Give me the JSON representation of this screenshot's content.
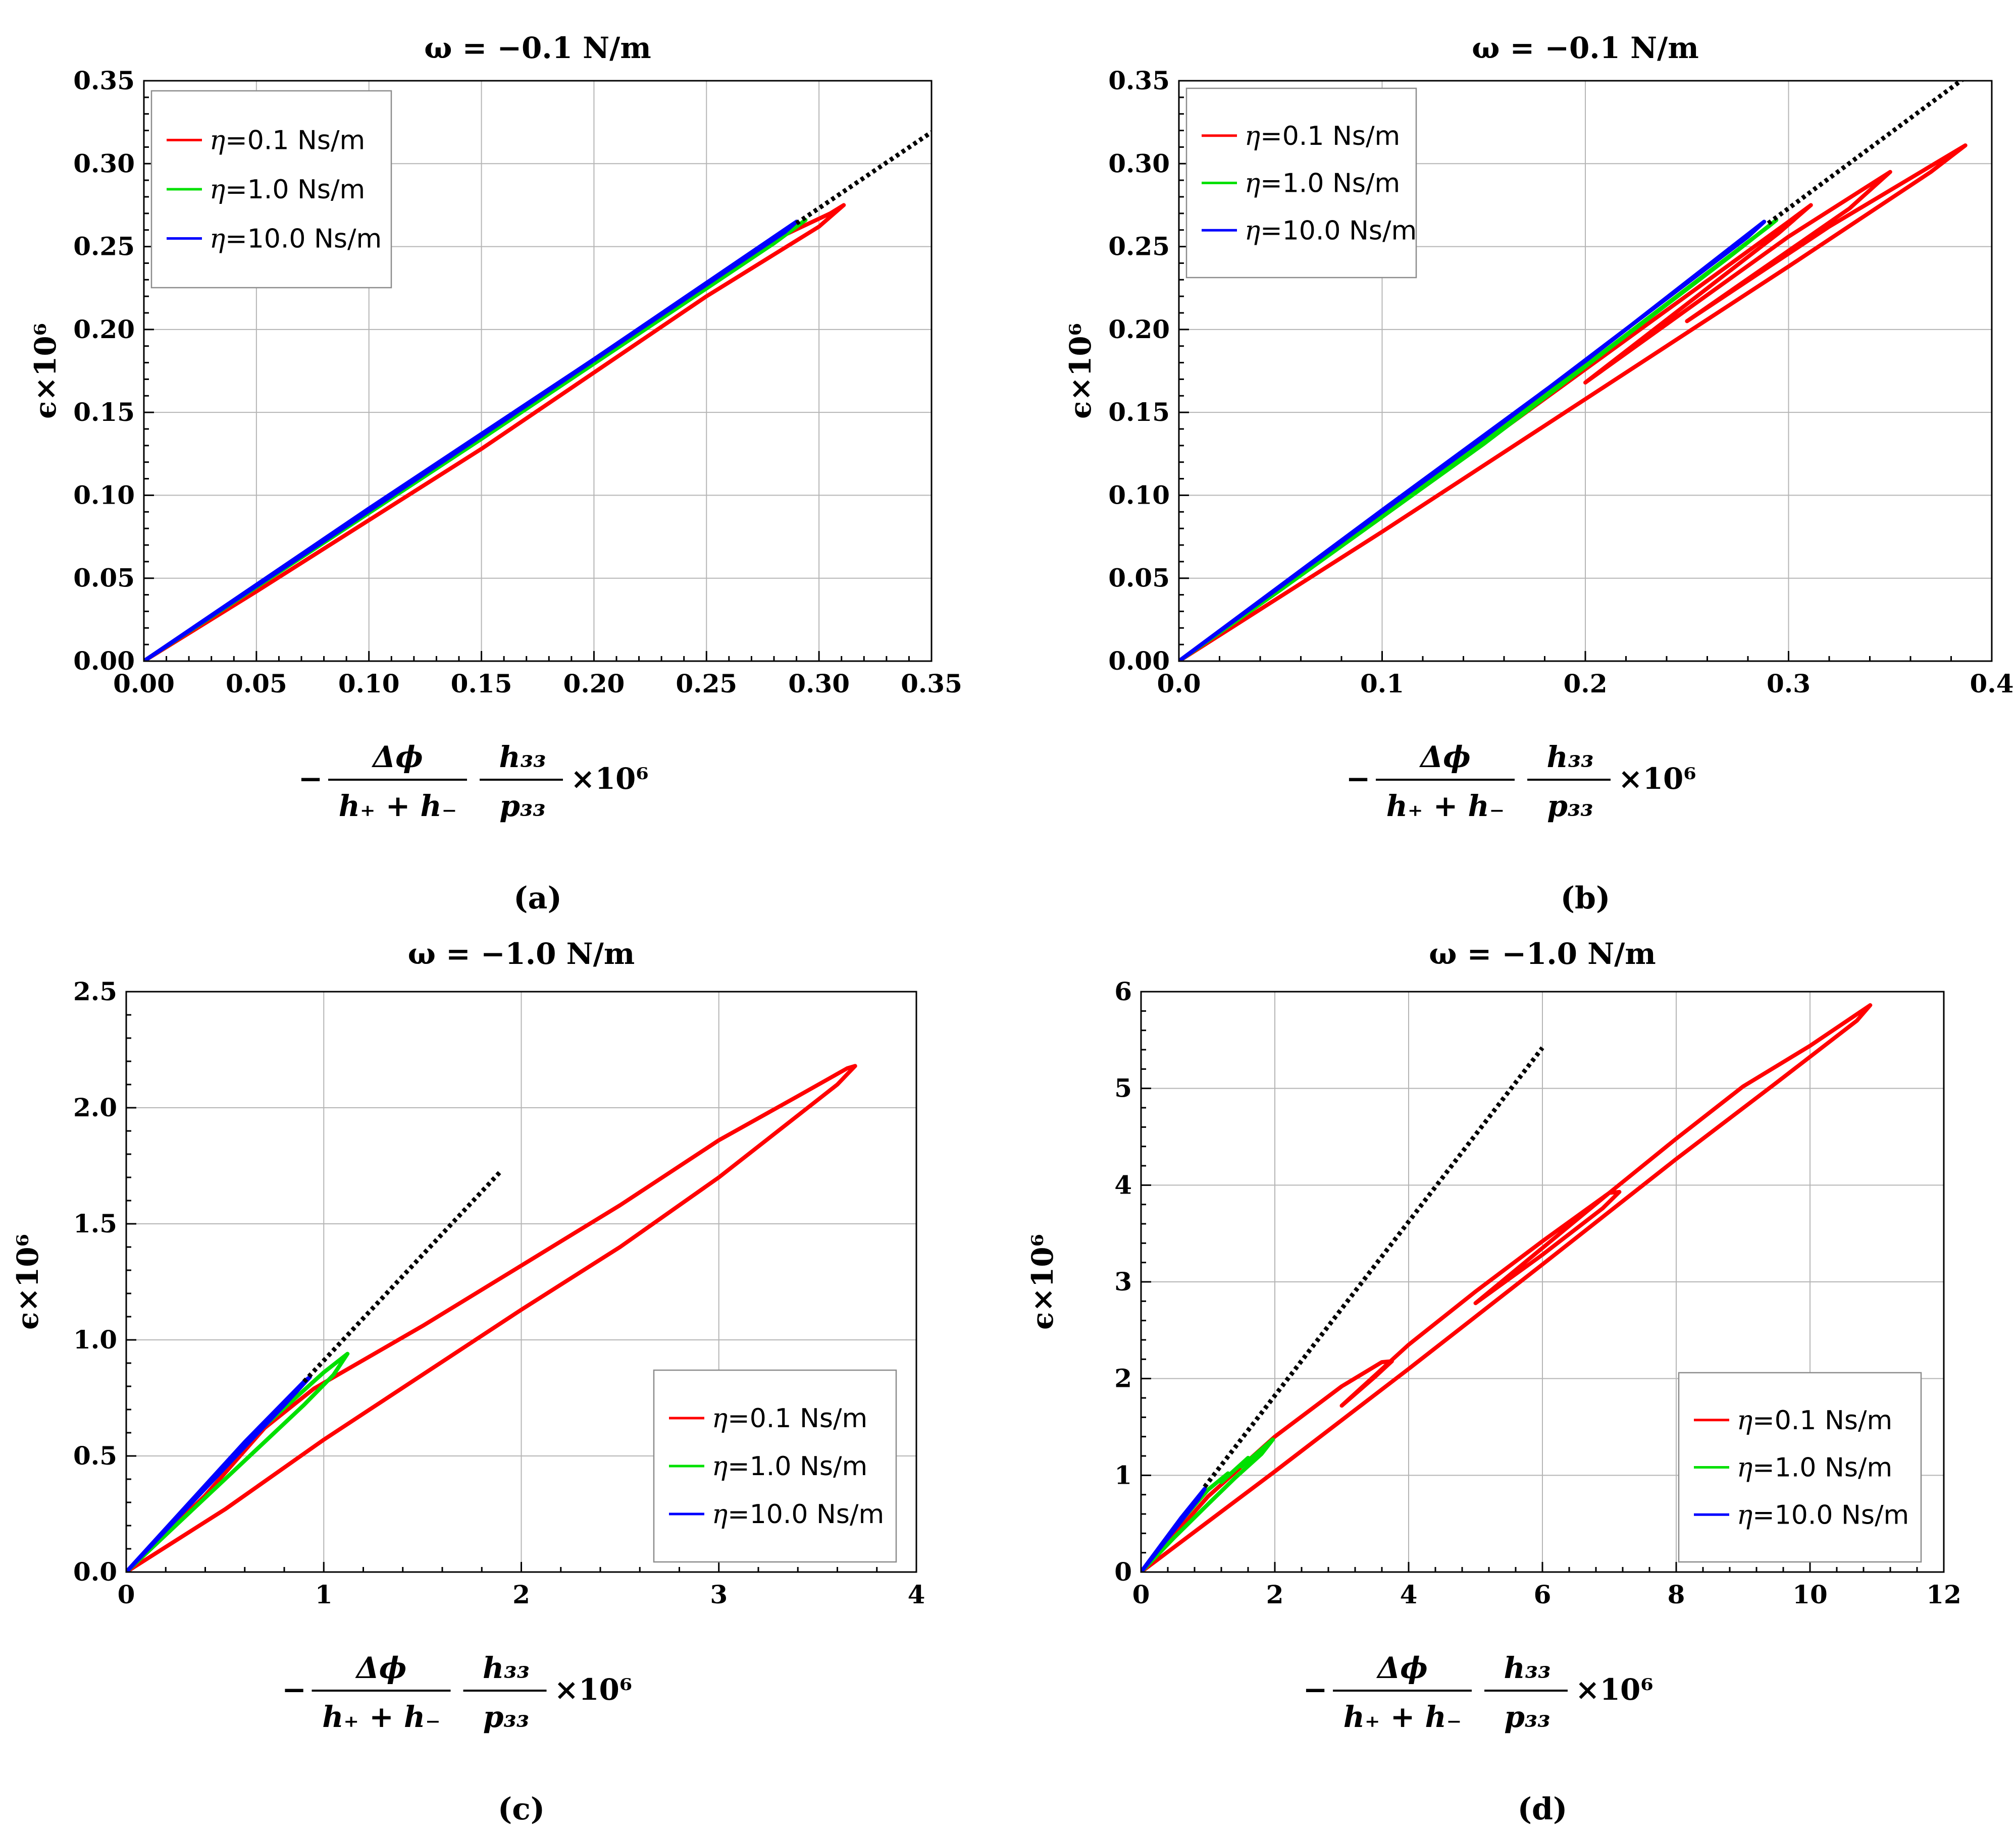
{
  "chart_data": [
    {
      "panel": "a",
      "type": "line",
      "title": "ω = −0.1 N/m",
      "caption": "(a)",
      "ylabel": "ϵ×10⁶",
      "xlabel": "−Δϕ/(h₊+h₋) · h₃₃/p₃₃ ×10⁶",
      "xlim": [
        0,
        0.35
      ],
      "ylim": [
        0,
        0.35
      ],
      "xticks": [
        "0.00",
        "0.05",
        "0.10",
        "0.15",
        "0.20",
        "0.25",
        "0.30",
        "0.35"
      ],
      "xtick_values": [
        0,
        0.05,
        0.1,
        0.15,
        0.2,
        0.25,
        0.3,
        0.35
      ],
      "yticks": [
        "0.00",
        "0.05",
        "0.10",
        "0.15",
        "0.20",
        "0.25",
        "0.30",
        "0.35"
      ],
      "ytick_values": [
        0,
        0.05,
        0.1,
        0.15,
        0.2,
        0.25,
        0.3,
        0.35
      ],
      "legend_position": "top-left",
      "legend": [
        {
          "eta": "η",
          "label": "=0.1 Ns/m",
          "color": "#ff0000"
        },
        {
          "eta": "η",
          "label": "=1.0 Ns/m",
          "color": "#00e000"
        },
        {
          "eta": "η",
          "label": "=10.0 Ns/m",
          "color": "#0000ff"
        }
      ],
      "reference_line": {
        "style": "dotted",
        "color": "#000000",
        "points": [
          [
            0.29,
            0.264
          ],
          [
            0.35,
            0.319
          ]
        ]
      },
      "series": [
        {
          "name": "η=0.1 Ns/m",
          "color": "#ff0000",
          "points": [
            [
              0,
              0
            ],
            [
              0.1,
              0.091
            ],
            [
              0.2,
              0.18
            ],
            [
              0.28,
              0.254
            ],
            [
              0.305,
              0.27
            ],
            [
              0.311,
              0.275
            ],
            [
              0.3,
              0.262
            ],
            [
              0.25,
              0.22
            ],
            [
              0.15,
              0.128
            ],
            [
              0.05,
              0.042
            ],
            [
              0,
              0
            ]
          ]
        },
        {
          "name": "η=1.0 Ns/m",
          "color": "#00e000",
          "points": [
            [
              0,
              0
            ],
            [
              0.1,
              0.091
            ],
            [
              0.2,
              0.181
            ],
            [
              0.29,
              0.262
            ],
            [
              0.294,
              0.266
            ],
            [
              0.28,
              0.252
            ],
            [
              0.15,
              0.134
            ],
            [
              0,
              0
            ]
          ]
        },
        {
          "name": "η=10.0 Ns/m",
          "color": "#0000ff",
          "points": [
            [
              0,
              0
            ],
            [
              0.1,
              0.092
            ],
            [
              0.2,
              0.182
            ],
            [
              0.29,
              0.265
            ],
            [
              0.285,
              0.259
            ],
            [
              0.15,
              0.136
            ],
            [
              0,
              0
            ]
          ]
        }
      ]
    },
    {
      "panel": "b",
      "type": "line",
      "title": "ω = −0.1 N/m",
      "caption": "(b)",
      "ylabel": "ϵ×10⁶",
      "xlabel": "−Δϕ/(h₊+h₋) · h₃₃/p₃₃ ×10⁶",
      "xlim": [
        0,
        0.4
      ],
      "ylim": [
        0,
        0.35
      ],
      "xticks": [
        "0.0",
        "0.1",
        "0.2",
        "0.3",
        "0.4"
      ],
      "xtick_values": [
        0,
        0.1,
        0.2,
        0.3,
        0.4
      ],
      "yticks": [
        "0.00",
        "0.05",
        "0.10",
        "0.15",
        "0.20",
        "0.25",
        "0.30",
        "0.35"
      ],
      "ytick_values": [
        0,
        0.05,
        0.1,
        0.15,
        0.2,
        0.25,
        0.3,
        0.35
      ],
      "legend_position": "top-left",
      "legend": [
        {
          "eta": "η",
          "label": "=0.1 Ns/m",
          "color": "#ff0000"
        },
        {
          "eta": "η",
          "label": "=1.0 Ns/m",
          "color": "#00e000"
        },
        {
          "eta": "η",
          "label": "=10.0 Ns/m",
          "color": "#0000ff"
        }
      ],
      "reference_line": {
        "style": "dotted",
        "color": "#000000",
        "points": [
          [
            0.29,
            0.264
          ],
          [
            0.387,
            0.352
          ]
        ]
      },
      "series": [
        {
          "name": "η=0.1 Ns/m",
          "color": "#ff0000",
          "points": [
            [
              0,
              0
            ],
            [
              0.1,
              0.087
            ],
            [
              0.2,
              0.176
            ],
            [
              0.3,
              0.265
            ],
            [
              0.311,
              0.275
            ],
            [
              0.295,
              0.258
            ],
            [
              0.2,
              0.168
            ],
            [
              0.3,
              0.256
            ],
            [
              0.35,
              0.295
            ],
            [
              0.33,
              0.273
            ],
            [
              0.25,
              0.205
            ],
            [
              0.32,
              0.262
            ],
            [
              0.387,
              0.311
            ],
            [
              0.37,
              0.295
            ],
            [
              0.3,
              0.238
            ],
            [
              0.2,
              0.158
            ],
            [
              0.1,
              0.078
            ],
            [
              0,
              0
            ]
          ]
        },
        {
          "name": "η=1.0 Ns/m",
          "color": "#00e000",
          "points": [
            [
              0,
              0
            ],
            [
              0.1,
              0.089
            ],
            [
              0.2,
              0.178
            ],
            [
              0.29,
              0.262
            ],
            [
              0.294,
              0.266
            ],
            [
              0.27,
              0.243
            ],
            [
              0.15,
              0.131
            ],
            [
              0.05,
              0.043
            ],
            [
              0,
              0
            ]
          ]
        },
        {
          "name": "η=10.0 Ns/m",
          "color": "#0000ff",
          "points": [
            [
              0,
              0
            ],
            [
              0.1,
              0.091
            ],
            [
              0.2,
              0.181
            ],
            [
              0.288,
              0.265
            ],
            [
              0.28,
              0.256
            ],
            [
              0.15,
              0.135
            ],
            [
              0,
              0
            ]
          ]
        }
      ]
    },
    {
      "panel": "c",
      "type": "line",
      "title": "ω = −1.0 N/m",
      "caption": "(c)",
      "ylabel": "ϵ×10⁶",
      "xlabel": "−Δϕ/(h₊+h₋) · h₃₃/p₃₃ ×10⁶",
      "xlim": [
        0,
        4
      ],
      "ylim": [
        0,
        2.5
      ],
      "xticks": [
        "0",
        "1",
        "2",
        "3",
        "4"
      ],
      "xtick_values": [
        0,
        1,
        2,
        3,
        4
      ],
      "yticks": [
        "0.0",
        "0.5",
        "1.0",
        "1.5",
        "2.0",
        "2.5"
      ],
      "ytick_values": [
        0,
        0.5,
        1.0,
        1.5,
        2.0,
        2.5
      ],
      "legend_position": "bottom-right",
      "legend": [
        {
          "eta": "η",
          "label": "=0.1 Ns/m",
          "color": "#ff0000"
        },
        {
          "eta": "η",
          "label": "=1.0 Ns/m",
          "color": "#00e000"
        },
        {
          "eta": "η",
          "label": "=10.0 Ns/m",
          "color": "#0000ff"
        }
      ],
      "reference_line": {
        "style": "dotted",
        "color": "#000000",
        "points": [
          [
            0.9,
            0.82
          ],
          [
            1.9,
            1.73
          ]
        ]
      },
      "series": [
        {
          "name": "η=0.1 Ns/m",
          "color": "#ff0000",
          "points": [
            [
              0,
              0
            ],
            [
              0.4,
              0.33
            ],
            [
              0.7,
              0.62
            ],
            [
              0.95,
              0.79
            ],
            [
              1.5,
              1.06
            ],
            [
              2.0,
              1.32
            ],
            [
              2.5,
              1.58
            ],
            [
              3.0,
              1.86
            ],
            [
              3.4,
              2.05
            ],
            [
              3.65,
              2.17
            ],
            [
              3.69,
              2.18
            ],
            [
              3.6,
              2.1
            ],
            [
              3.0,
              1.7
            ],
            [
              2.5,
              1.4
            ],
            [
              2.0,
              1.13
            ],
            [
              1.5,
              0.85
            ],
            [
              1.0,
              0.57
            ],
            [
              0.5,
              0.27
            ],
            [
              0,
              0
            ]
          ]
        },
        {
          "name": "η=1.0 Ns/m",
          "color": "#00e000",
          "points": [
            [
              0,
              0
            ],
            [
              0.4,
              0.36
            ],
            [
              0.7,
              0.63
            ],
            [
              1.0,
              0.86
            ],
            [
              1.12,
              0.94
            ],
            [
              1.05,
              0.85
            ],
            [
              0.9,
              0.72
            ],
            [
              0.6,
              0.48
            ],
            [
              0.3,
              0.24
            ],
            [
              0,
              0
            ]
          ]
        },
        {
          "name": "η=10.0 Ns/m",
          "color": "#0000ff",
          "points": [
            [
              0,
              0
            ],
            [
              0.3,
              0.28
            ],
            [
              0.6,
              0.56
            ],
            [
              0.9,
              0.82
            ],
            [
              0.93,
              0.84
            ],
            [
              0.8,
              0.72
            ],
            [
              0.5,
              0.45
            ],
            [
              0.2,
              0.18
            ],
            [
              0,
              0
            ]
          ]
        }
      ]
    },
    {
      "panel": "d",
      "type": "line",
      "title": "ω = −1.0 N/m",
      "caption": "(d)",
      "ylabel": "ϵ×10⁶",
      "xlabel": "−Δϕ/(h₊+h₋) · h₃₃/p₃₃ ×10⁶",
      "xlim": [
        0,
        12
      ],
      "ylim": [
        0,
        6
      ],
      "xticks": [
        "0",
        "2",
        "4",
        "6",
        "8",
        "10",
        "12"
      ],
      "xtick_values": [
        0,
        2,
        4,
        6,
        8,
        10,
        12
      ],
      "yticks": [
        "0",
        "1",
        "2",
        "3",
        "4",
        "5",
        "6"
      ],
      "ytick_values": [
        0,
        1,
        2,
        3,
        4,
        5,
        6
      ],
      "legend_position": "bottom-right",
      "legend": [
        {
          "eta": "η",
          "label": "=0.1 Ns/m",
          "color": "#ff0000"
        },
        {
          "eta": "η",
          "label": "=1.0 Ns/m",
          "color": "#00e000"
        },
        {
          "eta": "η",
          "label": "=10.0 Ns/m",
          "color": "#0000ff"
        }
      ],
      "reference_line": {
        "style": "dotted",
        "color": "#000000",
        "points": [
          [
            0.95,
            0.88
          ],
          [
            6.0,
            5.42
          ]
        ]
      },
      "series": [
        {
          "name": "η=0.1 Ns/m",
          "color": "#ff0000",
          "points": [
            [
              0,
              0
            ],
            [
              1.0,
              0.78
            ],
            [
              2.0,
              1.4
            ],
            [
              3.0,
              1.92
            ],
            [
              3.6,
              2.17
            ],
            [
              3.75,
              2.18
            ],
            [
              3.5,
              2.02
            ],
            [
              3.0,
              1.72
            ],
            [
              4.0,
              2.35
            ],
            [
              5.0,
              2.9
            ],
            [
              6.0,
              3.42
            ],
            [
              7.0,
              3.92
            ],
            [
              7.15,
              3.93
            ],
            [
              6.9,
              3.76
            ],
            [
              6.0,
              3.28
            ],
            [
              5.0,
              2.78
            ],
            [
              6.0,
              3.35
            ],
            [
              7.0,
              3.92
            ],
            [
              8.0,
              4.48
            ],
            [
              9.0,
              5.02
            ],
            [
              10.0,
              5.44
            ],
            [
              10.9,
              5.86
            ],
            [
              10.7,
              5.7
            ],
            [
              9.5,
              5.06
            ],
            [
              8.0,
              4.27
            ],
            [
              6.0,
              3.18
            ],
            [
              4.0,
              2.1
            ],
            [
              2.0,
              1.04
            ],
            [
              0,
              0
            ]
          ]
        },
        {
          "name": "η=1.0 Ns/m",
          "color": "#00e000",
          "points": [
            [
              0,
              0
            ],
            [
              0.5,
              0.45
            ],
            [
              1.0,
              0.85
            ],
            [
              1.3,
              1.02
            ],
            [
              1.2,
              0.93
            ],
            [
              1.6,
              1.18
            ],
            [
              1.5,
              1.09
            ],
            [
              1.97,
              1.37
            ],
            [
              1.8,
              1.22
            ],
            [
              1.4,
              0.97
            ],
            [
              1.0,
              0.7
            ],
            [
              0.5,
              0.36
            ],
            [
              0,
              0
            ]
          ]
        },
        {
          "name": "η=10.0 Ns/m",
          "color": "#0000ff",
          "points": [
            [
              0,
              0
            ],
            [
              0.3,
              0.28
            ],
            [
              0.6,
              0.56
            ],
            [
              0.95,
              0.86
            ],
            [
              0.85,
              0.75
            ],
            [
              0.5,
              0.44
            ],
            [
              0,
              0
            ]
          ]
        }
      ]
    }
  ]
}
